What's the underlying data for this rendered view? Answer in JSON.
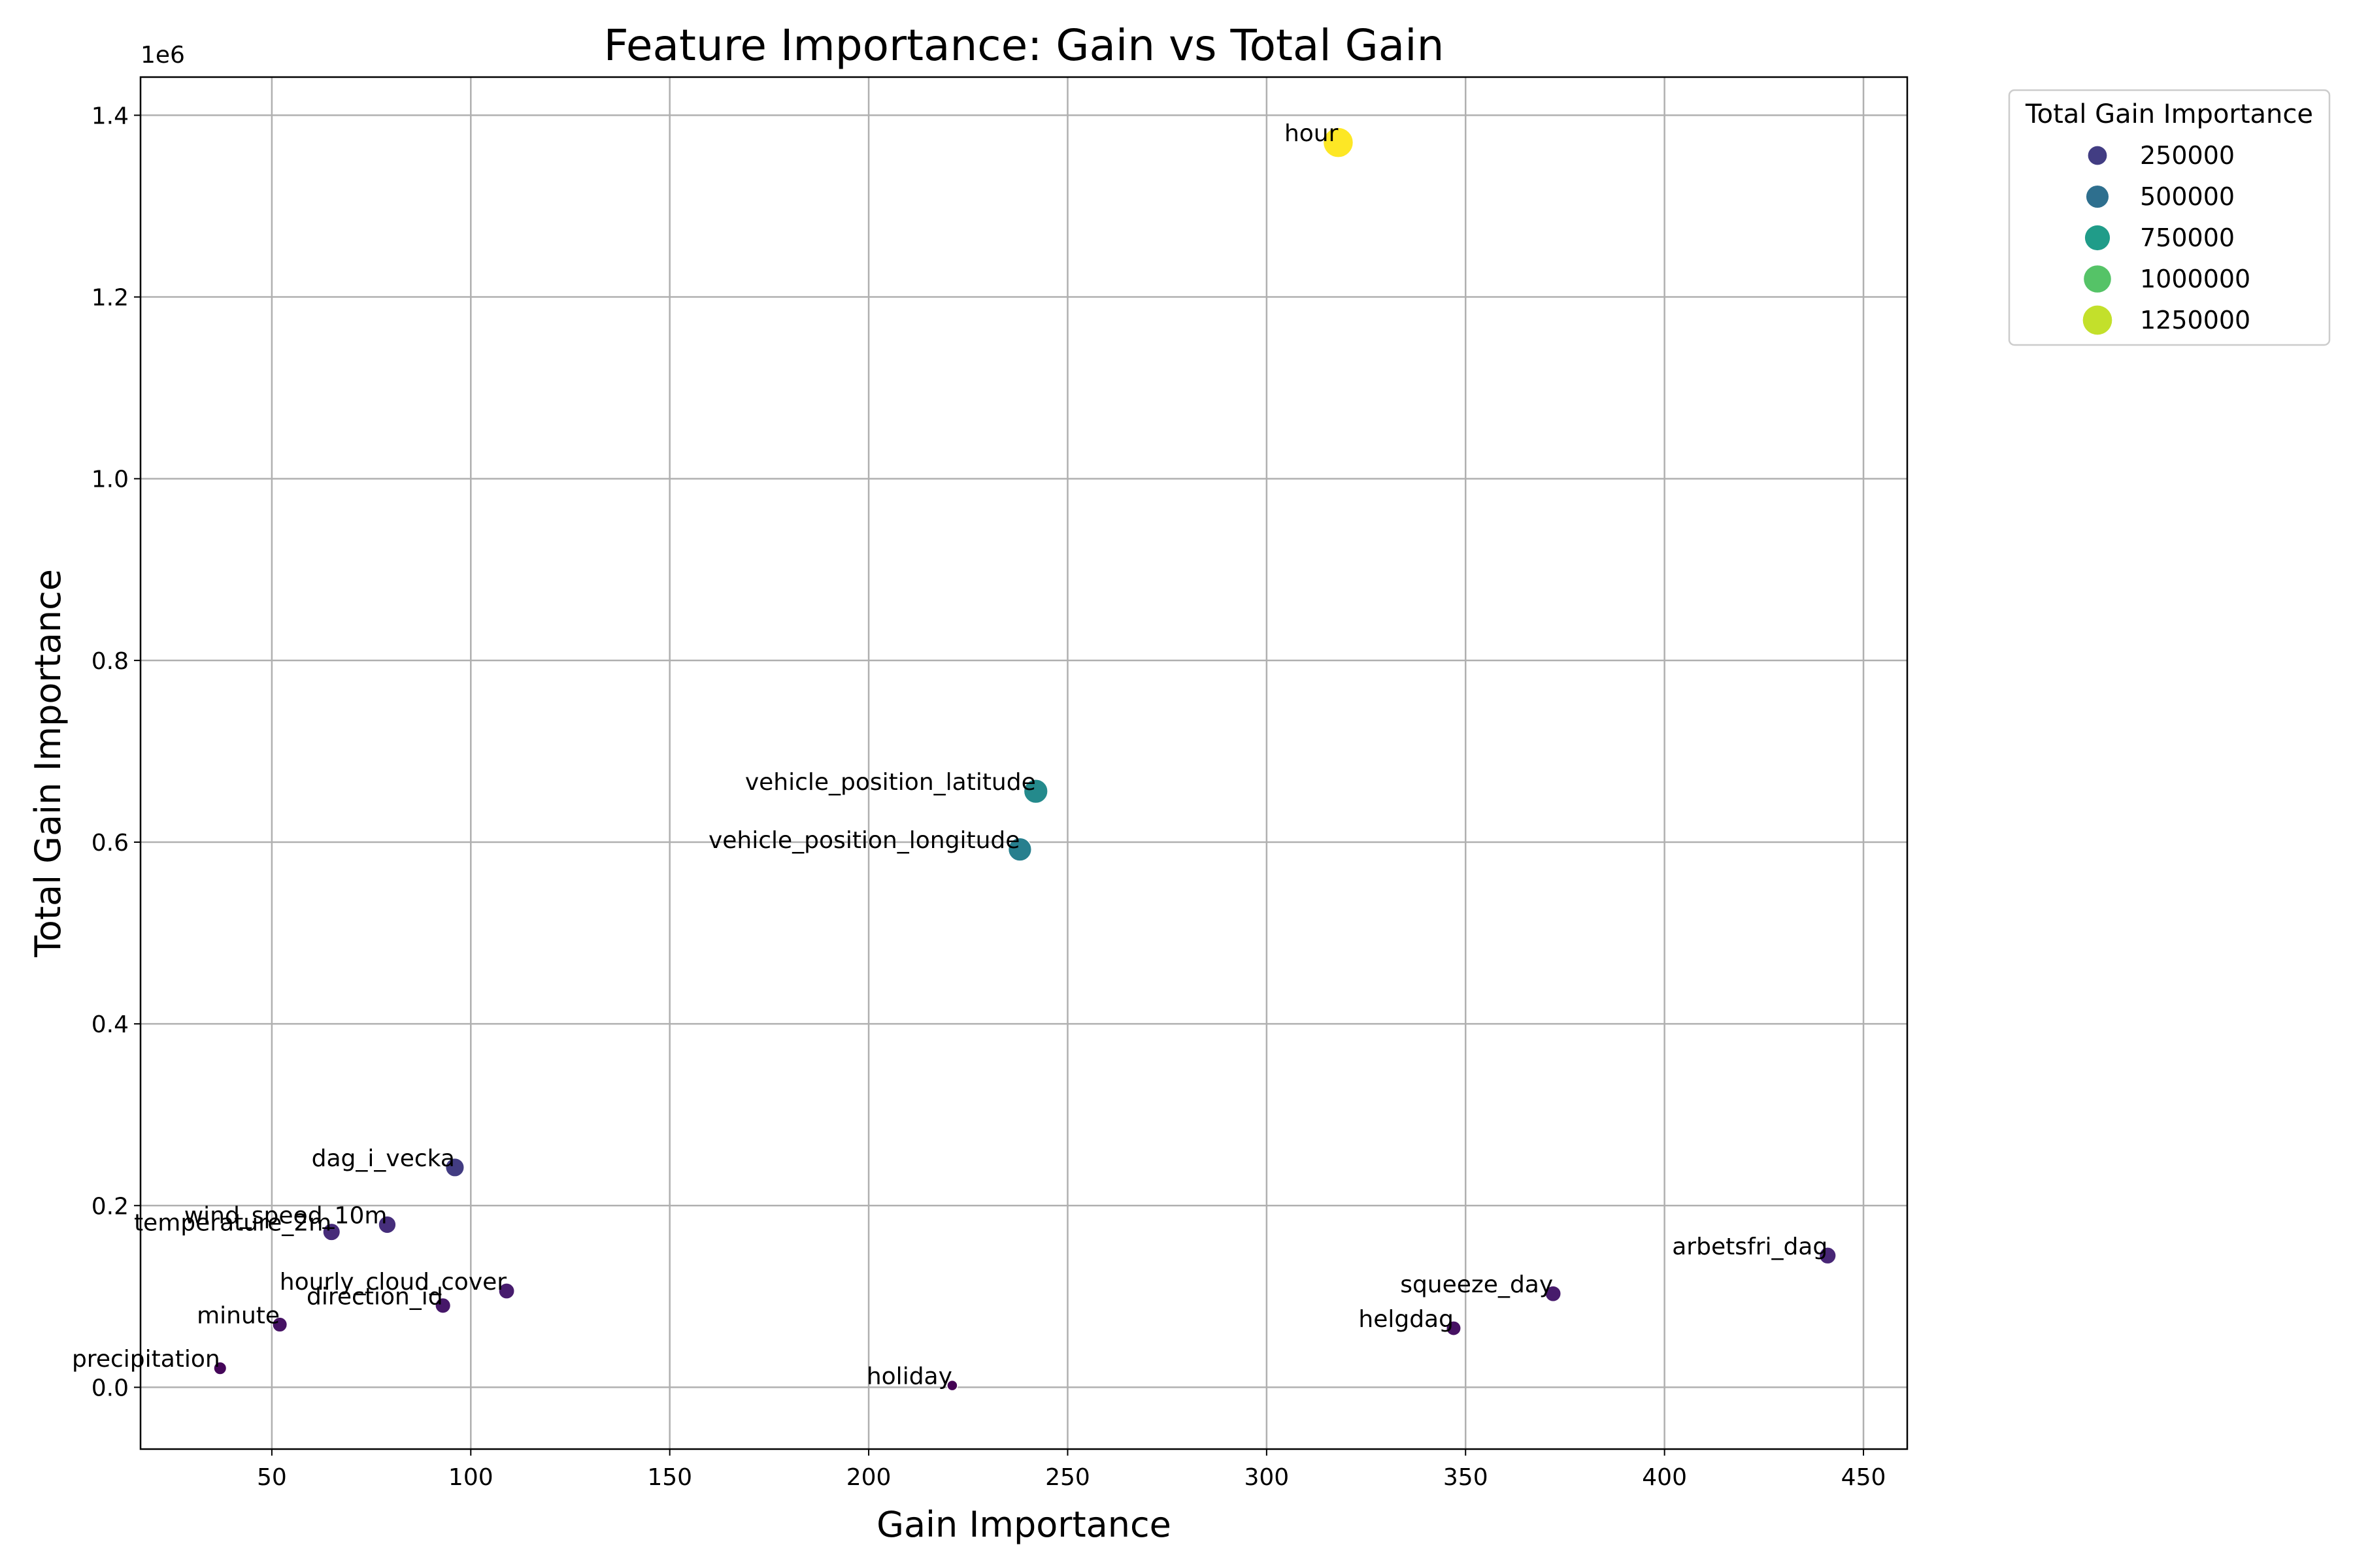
{
  "chart_data": {
    "type": "scatter",
    "title": "Feature Importance: Gain vs Total Gain",
    "xlabel": "Gain Importance",
    "ylabel": "Total Gain Importance",
    "y_offset_text": "1e6",
    "xlim": [
      17,
      461
    ],
    "ylim": [
      -68000,
      1442000
    ],
    "x_ticks": [
      50,
      100,
      150,
      200,
      250,
      300,
      350,
      400,
      450
    ],
    "y_ticks": [
      0,
      200000,
      400000,
      600000,
      800000,
      1000000,
      1200000,
      1400000
    ],
    "y_tick_labels": [
      "0.0",
      "0.2",
      "0.4",
      "0.6",
      "0.8",
      "1.0",
      "1.2",
      "1.4"
    ],
    "grid": true,
    "colormap": "viridis",
    "points": [
      {
        "label": "hour",
        "x": 318,
        "y": 1370000
      },
      {
        "label": "vehicle_position_latitude",
        "x": 242,
        "y": 656000
      },
      {
        "label": "vehicle_position_longitude",
        "x": 238,
        "y": 592000
      },
      {
        "label": "dag_i_vecka",
        "x": 96,
        "y": 242000
      },
      {
        "label": "wind_speed_10m",
        "x": 79,
        "y": 179000
      },
      {
        "label": "temperature_2m",
        "x": 65,
        "y": 171000
      },
      {
        "label": "arbetsfri_dag",
        "x": 441,
        "y": 145000
      },
      {
        "label": "hourly_cloud_cover",
        "x": 109,
        "y": 106000
      },
      {
        "label": "squeeze_day",
        "x": 372,
        "y": 103000
      },
      {
        "label": "direction_id",
        "x": 93,
        "y": 90000
      },
      {
        "label": "minute",
        "x": 52,
        "y": 69000
      },
      {
        "label": "helgdag",
        "x": 347,
        "y": 65000
      },
      {
        "label": "precipitation",
        "x": 37,
        "y": 21000
      },
      {
        "label": "holiday",
        "x": 221,
        "y": 2000
      }
    ],
    "legend": {
      "title": "Total Gain Importance",
      "placement": "outside-upper-right",
      "entries": [
        {
          "label": "250000",
          "value": 250000
        },
        {
          "label": "500000",
          "value": 500000
        },
        {
          "label": "750000",
          "value": 750000
        },
        {
          "label": "1000000",
          "value": 1000000
        },
        {
          "label": "1250000",
          "value": 1250000
        }
      ]
    }
  }
}
